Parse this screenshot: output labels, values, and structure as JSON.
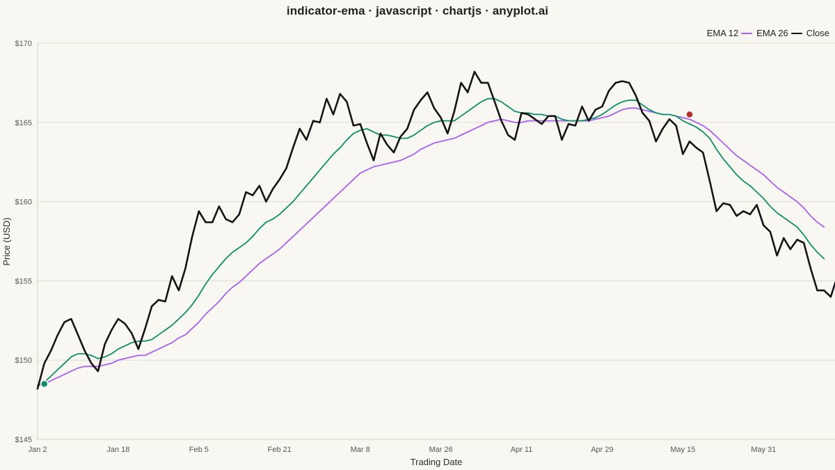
{
  "chart_data": {
    "type": "line",
    "title": "indicator-ema · javascript · chartjs · anyplot.ai",
    "xlabel": "Trading Date",
    "ylabel": "Price (USD)",
    "ylim": [
      145,
      170
    ],
    "y_ticks": [
      "$145",
      "$150",
      "$155",
      "$160",
      "$165",
      "$170"
    ],
    "y_tick_values": [
      145,
      150,
      155,
      160,
      165,
      170
    ],
    "x_tick_labels": [
      "Jan 2",
      "Jan 18",
      "Feb 5",
      "Feb 21",
      "Mar 8",
      "Mar 26",
      "Apr 11",
      "Apr 29",
      "May 15",
      "May 31"
    ],
    "x_tick_indices": [
      0,
      12,
      24,
      36,
      48,
      60,
      72,
      84,
      96,
      108
    ],
    "grid": true,
    "legend_position": "top-right",
    "series": [
      {
        "name": "EMA 12",
        "color": "#0a8f67",
        "values": [
          148.4,
          148.6,
          149.0,
          149.4,
          149.8,
          150.2,
          150.4,
          150.4,
          150.3,
          150.1,
          150.2,
          150.4,
          150.7,
          150.9,
          151.1,
          151.2,
          151.2,
          151.3,
          151.6,
          151.9,
          152.2,
          152.6,
          153.0,
          153.5,
          154.1,
          154.8,
          155.4,
          155.9,
          156.4,
          156.8,
          157.1,
          157.4,
          157.8,
          158.3,
          158.7,
          158.9,
          159.2,
          159.6,
          160.0,
          160.5,
          161.0,
          161.5,
          162.0,
          162.5,
          163.0,
          163.4,
          163.9,
          164.3,
          164.5,
          164.6,
          164.4,
          164.2,
          164.2,
          164.1,
          164.0,
          164.0,
          164.2,
          164.5,
          164.8,
          165.0,
          165.1,
          165.1,
          165.1,
          165.4,
          165.7,
          166.0,
          166.3,
          166.5,
          166.5,
          166.3,
          166.0,
          165.7,
          165.6,
          165.6,
          165.5,
          165.5,
          165.4,
          165.4,
          165.2,
          165.1,
          165.1,
          165.1,
          165.2,
          165.3,
          165.5,
          165.8,
          166.1,
          166.3,
          166.4,
          166.4,
          166.1,
          165.8,
          165.6,
          165.5,
          165.5,
          165.4,
          165.1,
          164.9,
          164.7,
          164.4,
          164.0,
          163.3,
          162.7,
          162.2,
          161.7,
          161.3,
          161.0,
          160.6,
          160.2,
          159.7,
          159.3,
          159.0,
          158.7,
          158.4,
          157.9,
          157.3,
          156.8,
          156.4
        ]
      },
      {
        "name": "EMA 26",
        "color": "#a95ff0",
        "values": [
          148.4,
          148.5,
          148.7,
          148.9,
          149.1,
          149.3,
          149.5,
          149.6,
          149.6,
          149.6,
          149.7,
          149.8,
          150.0,
          150.1,
          150.2,
          150.3,
          150.3,
          150.5,
          150.7,
          150.9,
          151.1,
          151.4,
          151.6,
          152.0,
          152.4,
          152.9,
          153.3,
          153.7,
          154.2,
          154.6,
          154.9,
          155.3,
          155.7,
          156.1,
          156.4,
          156.7,
          157.0,
          157.4,
          157.8,
          158.2,
          158.6,
          159.0,
          159.4,
          159.8,
          160.2,
          160.6,
          161.0,
          161.4,
          161.8,
          162.0,
          162.2,
          162.3,
          162.4,
          162.5,
          162.6,
          162.8,
          163.0,
          163.3,
          163.5,
          163.7,
          163.8,
          163.9,
          164.0,
          164.2,
          164.4,
          164.6,
          164.8,
          165.0,
          165.1,
          165.2,
          165.1,
          165.0,
          165.0,
          165.1,
          165.1,
          165.1,
          165.1,
          165.1,
          165.1,
          165.1,
          165.1,
          165.1,
          165.1,
          165.2,
          165.3,
          165.4,
          165.6,
          165.8,
          165.9,
          165.9,
          165.8,
          165.7,
          165.6,
          165.5,
          165.5,
          165.4,
          165.3,
          165.2,
          165.0,
          164.8,
          164.5,
          164.1,
          163.7,
          163.3,
          162.9,
          162.6,
          162.3,
          162.0,
          161.7,
          161.3,
          160.9,
          160.6,
          160.3,
          160.0,
          159.6,
          159.1,
          158.7,
          158.4
        ]
      },
      {
        "name": "Close",
        "color": "#141414",
        "values": [
          148.2,
          149.8,
          150.6,
          151.6,
          152.4,
          152.6,
          151.6,
          150.6,
          149.8,
          149.3,
          151.0,
          151.9,
          152.6,
          152.3,
          151.7,
          150.7,
          152.0,
          153.4,
          153.8,
          153.7,
          155.3,
          154.4,
          155.8,
          157.8,
          159.4,
          158.7,
          158.7,
          159.7,
          158.9,
          158.7,
          159.2,
          160.6,
          160.4,
          161.0,
          160.0,
          160.8,
          161.4,
          162.1,
          163.4,
          164.6,
          163.9,
          165.1,
          165.0,
          166.5,
          165.5,
          166.8,
          166.3,
          164.8,
          164.9,
          163.7,
          162.6,
          164.3,
          163.6,
          163.1,
          164.1,
          164.6,
          165.8,
          166.4,
          166.9,
          165.9,
          165.3,
          164.3,
          165.7,
          167.5,
          166.9,
          168.2,
          167.5,
          167.5,
          166.3,
          165.1,
          164.2,
          163.9,
          165.6,
          165.5,
          165.2,
          164.9,
          165.4,
          165.4,
          163.9,
          164.9,
          164.8,
          166.0,
          165.1,
          165.8,
          166.0,
          167.0,
          167.5,
          167.6,
          167.5,
          166.7,
          165.6,
          165.1,
          163.8,
          164.6,
          165.2,
          164.8,
          163.0,
          163.8,
          163.4,
          163.1,
          161.3,
          159.4,
          159.9,
          159.8,
          159.1,
          159.4,
          159.2,
          159.8,
          158.5,
          158.1,
          156.6,
          157.7,
          157.0,
          157.6,
          157.4,
          155.8,
          154.4,
          154.4,
          154.0,
          155.3
        ]
      }
    ],
    "markers": [
      {
        "index": 1,
        "value": 148.5,
        "color": "#0a8f67",
        "meaning": "bullish-crossover"
      },
      {
        "index": 97,
        "value": 165.5,
        "color": "#b3302f",
        "meaning": "bearish-crossover"
      }
    ]
  }
}
